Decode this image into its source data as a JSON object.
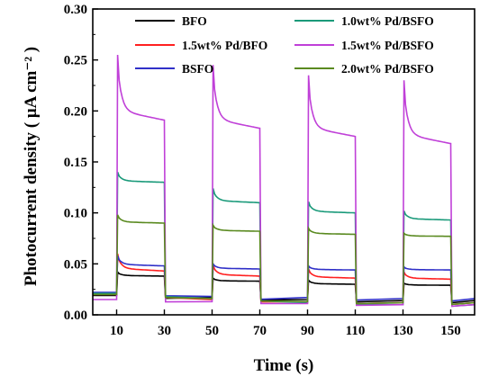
{
  "chart_data": {
    "type": "line",
    "title": "",
    "xlabel": "Time (s)",
    "ylabel": "Photocurrent density ( μA cm⁻² )",
    "xlim": [
      0,
      160
    ],
    "ylim": [
      0,
      0.3
    ],
    "xticks": [
      10,
      30,
      50,
      70,
      90,
      110,
      130,
      150
    ],
    "yticks": [
      0.0,
      0.05,
      0.1,
      0.15,
      0.2,
      0.25,
      0.3
    ],
    "ytick_labels": [
      "0.00",
      "0.05",
      "0.10",
      "0.15",
      "0.20",
      "0.25",
      "0.30"
    ],
    "grid": false,
    "legend_position": "top",
    "light_on_intervals": [
      [
        10,
        30
      ],
      [
        50,
        70
      ],
      [
        90,
        110
      ],
      [
        130,
        150
      ]
    ],
    "series": [
      {
        "name": "BFO",
        "color": "#000000",
        "dark": [
          0.019,
          0.017,
          0.015,
          0.014
        ],
        "peak": [
          0.042,
          0.036,
          0.034,
          0.031
        ],
        "end": [
          0.038,
          0.033,
          0.03,
          0.029
        ]
      },
      {
        "name": "1.5wt% Pd/BFO",
        "color": "#ff2020",
        "dark": [
          0.02,
          0.015,
          0.013,
          0.012
        ],
        "peak": [
          0.06,
          0.049,
          0.045,
          0.042
        ],
        "end": [
          0.043,
          0.038,
          0.036,
          0.035
        ]
      },
      {
        "name": "BSFO",
        "color": "#3030c8",
        "dark": [
          0.022,
          0.018,
          0.017,
          0.016
        ],
        "peak": [
          0.058,
          0.05,
          0.048,
          0.047
        ],
        "end": [
          0.048,
          0.045,
          0.044,
          0.044
        ]
      },
      {
        "name": "1.0wt% Pd/BSFO",
        "color": "#1a9a7a",
        "dark": [
          0.021,
          0.016,
          0.012,
          0.01
        ],
        "peak": [
          0.14,
          0.124,
          0.111,
          0.102
        ],
        "end": [
          0.13,
          0.11,
          0.1,
          0.093
        ]
      },
      {
        "name": "1.5wt% Pd/BSFO",
        "color": "#c040d8",
        "dark": [
          0.015,
          0.013,
          0.011,
          0.01
        ],
        "peak": [
          0.255,
          0.245,
          0.235,
          0.23
        ],
        "end": [
          0.191,
          0.183,
          0.175,
          0.168
        ]
      },
      {
        "name": "2.0wt% Pd/BSFO",
        "color": "#5a8a20",
        "dark": [
          0.02,
          0.016,
          0.013,
          0.012
        ],
        "peak": [
          0.098,
          0.088,
          0.085,
          0.08
        ],
        "end": [
          0.09,
          0.082,
          0.079,
          0.077
        ]
      }
    ]
  }
}
